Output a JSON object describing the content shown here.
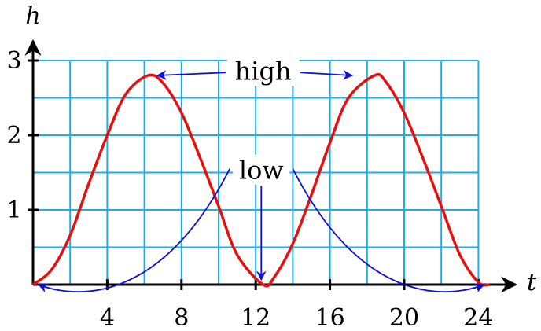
{
  "chart_data": {
    "type": "line",
    "xlabel": "t",
    "ylabel": "h",
    "xlim": [
      0,
      24.6
    ],
    "ylim": [
      0,
      3
    ],
    "x_ticks": [
      4,
      8,
      12,
      16,
      20,
      24
    ],
    "x_tick_labels": [
      "4",
      "8",
      "12",
      "16",
      "20",
      "24"
    ],
    "y_ticks": [
      1,
      2,
      3
    ],
    "y_tick_labels": [
      "1",
      "2",
      "3"
    ],
    "grid": true,
    "grid_x_step": 2,
    "grid_y_step": 0.5,
    "series": [
      {
        "x": [
          0,
          1,
          2,
          3,
          4,
          5,
          6.2,
          7,
          8,
          9,
          10,
          11,
          12.4,
          13,
          14,
          15,
          16,
          17,
          18.4,
          19,
          20,
          21,
          22,
          23,
          24,
          24.6
        ],
        "y": [
          0.0,
          0.2,
          0.66,
          1.35,
          2.0,
          2.55,
          2.8,
          2.7,
          2.3,
          1.7,
          1.05,
          0.4,
          0.0,
          0.1,
          0.55,
          1.2,
          1.9,
          2.5,
          2.8,
          2.72,
          2.3,
          1.7,
          1.05,
          0.4,
          0.03,
          0.0
        ]
      }
    ],
    "annotations": [
      {
        "text": "high",
        "points_to": [
          [
            6.7,
            2.8
          ],
          [
            17.2,
            2.8
          ]
        ]
      },
      {
        "text": "low",
        "points_to": [
          [
            0.3,
            0.0
          ],
          [
            12.3,
            0.0
          ],
          [
            24.3,
            0.0
          ]
        ]
      }
    ],
    "colors": {
      "curve": "#e8100f",
      "grid": "#1ab0e6",
      "annotation": "#1010d8",
      "axes": "#000000"
    }
  }
}
